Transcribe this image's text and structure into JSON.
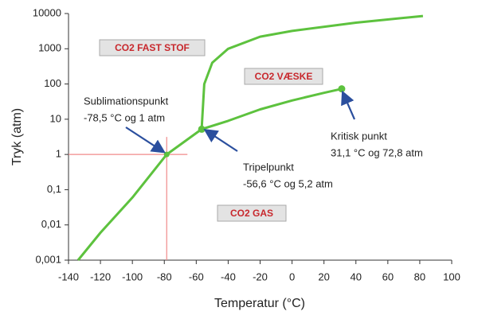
{
  "chart_data": {
    "type": "line",
    "x_label": "Temperatur (°C)",
    "y_label": "Tryk (atm)",
    "xlim": [
      -140,
      100
    ],
    "xticks": [
      -140,
      -120,
      -100,
      -80,
      -60,
      -40,
      -20,
      0,
      20,
      40,
      60,
      80,
      100
    ],
    "ylim": [
      0.001,
      10000
    ],
    "log_y": true,
    "yticks": [
      {
        "value": 0.001,
        "label": "0,001"
      },
      {
        "value": 0.01,
        "label": "0,01"
      },
      {
        "value": 0.1,
        "label": "0,1"
      },
      1,
      10,
      100,
      1000,
      10000
    ],
    "series": [
      {
        "color": "#5dc23e",
        "x": [
          -134,
          -120,
          -100,
          -78.5,
          -56.6
        ],
        "values": [
          0.001,
          0.006,
          0.06,
          1,
          5.2
        ]
      },
      {
        "color": "#5dc23e",
        "x": [
          -56.6,
          -40,
          -20,
          0,
          20,
          31.1
        ],
        "values": [
          5.2,
          9,
          19,
          34,
          56,
          72.8
        ]
      },
      {
        "color": "#5dc23e",
        "x": [
          -56.6,
          -55,
          -50,
          -40,
          -20,
          0,
          40,
          82
        ],
        "values": [
          5.2,
          100,
          400,
          1000,
          2200,
          3200,
          5500,
          8500
        ]
      }
    ],
    "regions": [
      "CO2 FAST STOF",
      "CO2 VÆSKE",
      "CO2 GAS"
    ],
    "annotations": [
      {
        "text": [
          "Sublimationspunkt",
          "-78,5 °C og 1 atm"
        ],
        "x": -78.5,
        "y": 1,
        "dot": false,
        "crosshair": true
      },
      {
        "text": [
          "Tripelpunkt",
          "-56,6 °C og 5,2 atm"
        ],
        "x": -56.6,
        "y": 5.2,
        "dot": true,
        "crosshair": false
      },
      {
        "text": [
          "Kritisk punkt",
          "31,1 °C og 72,8 atm"
        ],
        "x": 31.1,
        "y": 72.8,
        "dot": true,
        "crosshair": false
      }
    ],
    "marker_color": "#5dc23e",
    "crosshair_color": "#f08a8a",
    "arrow_color": "#2b4f9e",
    "region_color": "#c8282d"
  }
}
